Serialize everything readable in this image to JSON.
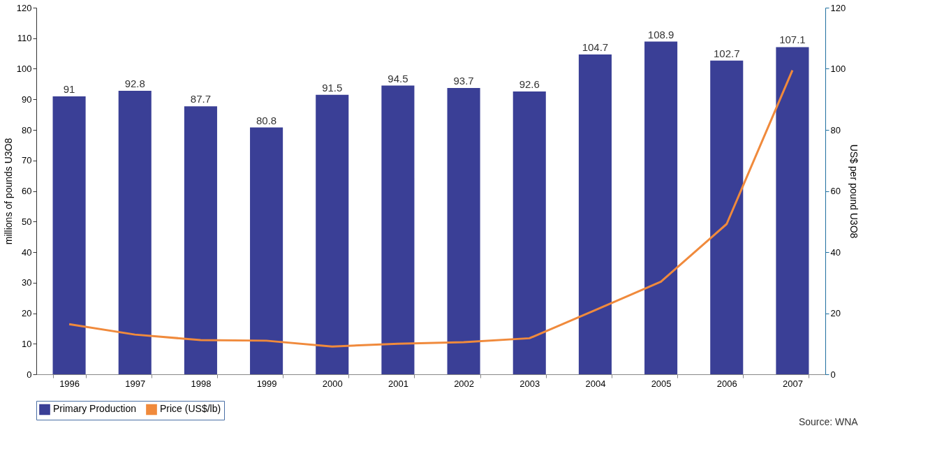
{
  "chart_data": {
    "type": "bar",
    "categories": [
      "1996",
      "1997",
      "1998",
      "1999",
      "2000",
      "2001",
      "2002",
      "2003",
      "2004",
      "2005",
      "2006",
      "2007"
    ],
    "ylabel": "millions of pounds U3O8",
    "y2label": "US$ per pound U3O8",
    "ylim": [
      0,
      120
    ],
    "yticks": [
      0,
      10,
      20,
      30,
      40,
      50,
      60,
      70,
      80,
      90,
      100,
      110,
      120
    ],
    "y2lim": [
      0,
      120
    ],
    "y2ticks": [
      0,
      20,
      40,
      60,
      80,
      100,
      120
    ],
    "series": [
      {
        "name": "Primary Production",
        "type": "bar",
        "color": "#3a3f96",
        "values": [
          91,
          92.8,
          87.7,
          80.8,
          91.5,
          94.5,
          93.7,
          92.6,
          104.7,
          108.9,
          102.7,
          107.1
        ],
        "data_labels": true
      },
      {
        "name": "Price (US$/lb)",
        "type": "line",
        "axis": "y2",
        "color": "#f08a3c",
        "values": [
          16.4,
          13,
          11.2,
          11,
          9.1,
          10,
          10.5,
          11.8,
          21,
          30.3,
          49.2,
          99.5
        ]
      }
    ],
    "legend": "bottom",
    "grid": false,
    "marker": "none",
    "line_style": "solid",
    "annotations": [
      "Source: WNA"
    ]
  }
}
